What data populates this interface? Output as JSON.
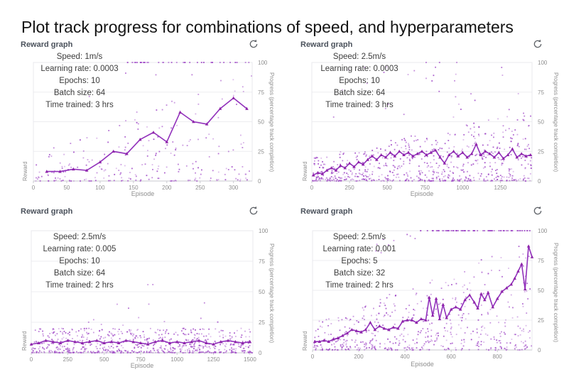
{
  "title": "Plot track progress for combinations of speed, and hyperparameters",
  "colors": {
    "line": "#9130bb",
    "marker": "#8e24aa",
    "scatter": "#9b3fc4",
    "grid": "#ededf0",
    "plot_border": "#e8e8ee",
    "axis_line": "#c9c9cf",
    "tick_text": "#8f8f8f",
    "refresh_icon": "#5f6368"
  },
  "chart_data": [
    {
      "type": "scatter",
      "header": "Reward graph",
      "annotation": [
        "Speed: 1m/s",
        "Learning rate: 0.0003",
        "Epochs: 10",
        "Batch size: 64",
        "Time trained: 3 hrs"
      ],
      "xlabel": "Episode",
      "ylabel_left": "Reward",
      "ylabel_right": "Progress (percentage track completion)",
      "x_ticks": [
        0,
        50,
        100,
        150,
        200,
        250,
        300
      ],
      "y_ticks": [
        0,
        25,
        50,
        75,
        100
      ],
      "xlim": [
        0,
        328
      ],
      "ylim": [
        0,
        100
      ],
      "grid": true,
      "legend": false,
      "line_series": {
        "name": "average progress",
        "x": [
          20,
          40,
          60,
          80,
          100,
          120,
          140,
          160,
          180,
          200,
          220,
          240,
          260,
          280,
          300,
          320
        ],
        "y": [
          8,
          8,
          10,
          9,
          16,
          25,
          23,
          35,
          41,
          33,
          58,
          50,
          48,
          61,
          70,
          61
        ]
      },
      "scatter_spec": {
        "seed": 11,
        "n": 235,
        "ymax_start": 26,
        "ymax_end": 95,
        "power": 2.3,
        "top_row": {
          "from": 140,
          "to": 327,
          "n": 36
        },
        "outliers": {
          "n": 8,
          "from": 60,
          "to": 327,
          "ymin": 70,
          "ymax": 99
        }
      }
    },
    {
      "type": "scatter",
      "header": "Reward graph",
      "annotation": [
        "Speed: 2.5m/s",
        "Learning rate: 0.0003",
        "Epochs: 10",
        "Batch size: 64",
        "Time trained: 3 hrs"
      ],
      "xlabel": "Episode",
      "ylabel_left": "Reward",
      "ylabel_right": "Progress (percentage track completion)",
      "x_ticks": [
        0,
        250,
        500,
        750,
        1000,
        1250
      ],
      "y_ticks": [
        0,
        25,
        50,
        75,
        100
      ],
      "xlim": [
        0,
        1460
      ],
      "ylim": [
        0,
        100
      ],
      "grid": true,
      "legend": false,
      "line_series": {
        "name": "average progress",
        "x": [
          10,
          40,
          70,
          100,
          130,
          160,
          190,
          220,
          250,
          280,
          310,
          340,
          370,
          400,
          430,
          460,
          490,
          520,
          550,
          580,
          610,
          640,
          670,
          700,
          730,
          760,
          790,
          820,
          850,
          880,
          910,
          940,
          970,
          1000,
          1030,
          1060,
          1090,
          1120,
          1150,
          1180,
          1210,
          1240,
          1270,
          1300,
          1330,
          1360,
          1390,
          1420,
          1450
        ],
        "y": [
          5,
          7,
          6,
          9,
          11,
          9,
          13,
          11,
          15,
          12,
          16,
          14,
          18,
          21,
          18,
          22,
          20,
          24,
          21,
          25,
          22,
          24,
          21,
          23,
          25,
          22,
          24,
          26,
          20,
          15,
          22,
          25,
          21,
          24,
          20,
          23,
          31,
          22,
          25,
          23,
          20,
          24,
          19,
          22,
          27,
          20,
          23,
          21,
          22
        ]
      },
      "scatter_spec": {
        "seed": 22,
        "n": 680,
        "ymax_start": 20,
        "ymax_end": 60,
        "power": 2.0,
        "top_row": {
          "from": 600,
          "to": 1100,
          "n": 3
        },
        "outliers": {
          "n": 30,
          "from": 100,
          "to": 1455,
          "ymin": 50,
          "ymax": 100
        }
      }
    },
    {
      "type": "scatter",
      "header": "Reward graph",
      "annotation": [
        "Speed: 2.5m/s",
        "Learning rate: 0.005",
        "Epochs: 10",
        "Batch size: 64",
        "Time trained: 2 hrs"
      ],
      "xlabel": "Episode",
      "ylabel_left": "Reward",
      "ylabel_right": "Progress (percentage track completion)",
      "x_ticks": [
        0,
        250,
        500,
        750,
        1000,
        1250,
        1500
      ],
      "y_ticks": [
        0,
        25,
        50,
        75,
        100
      ],
      "xlim": [
        0,
        1520
      ],
      "ylim": [
        0,
        100
      ],
      "grid": true,
      "legend": false,
      "line_series": {
        "name": "average progress",
        "x": [
          0,
          50,
          100,
          150,
          200,
          250,
          300,
          350,
          400,
          450,
          500,
          550,
          600,
          650,
          700,
          750,
          800,
          850,
          900,
          950,
          1000,
          1050,
          1100,
          1150,
          1200,
          1250,
          1300,
          1350,
          1400,
          1450,
          1500
        ],
        "y": [
          7,
          8,
          10,
          9,
          8,
          10,
          9,
          8,
          9,
          10,
          8,
          9,
          8,
          10,
          9,
          8,
          7,
          9,
          10,
          8,
          9,
          8,
          9,
          10,
          8,
          7,
          9,
          10,
          9,
          8,
          9
        ]
      },
      "scatter_spec": {
        "seed": 33,
        "n": 680,
        "ymax_start": 20,
        "ymax_end": 20,
        "power": 2.2,
        "top_row": {
          "from": 0,
          "to": 0,
          "n": 0
        },
        "outliers": {
          "n": 14,
          "from": 30,
          "to": 1480,
          "ymin": 22,
          "ymax": 56
        }
      }
    },
    {
      "type": "scatter",
      "header": "Reward graph",
      "annotation": [
        "Speed: 2.5m/s",
        "Learning rate: 0.001",
        "Epochs: 5",
        "Batch size: 32",
        "Time trained: 2 hrs"
      ],
      "xlabel": "Episode",
      "ylabel_left": "Reward",
      "ylabel_right": "Progress (percentage track completion)",
      "x_ticks": [
        0,
        200,
        400,
        600,
        800
      ],
      "y_ticks": [
        0,
        25,
        50,
        75,
        100
      ],
      "xlim": [
        0,
        950
      ],
      "ylim": [
        0,
        100
      ],
      "grid": true,
      "legend": false,
      "line_series": {
        "name": "average progress",
        "x": [
          10,
          30,
          50,
          70,
          90,
          110,
          130,
          150,
          170,
          190,
          210,
          230,
          250,
          270,
          290,
          310,
          330,
          350,
          370,
          390,
          410,
          430,
          450,
          470,
          490,
          505,
          520,
          535,
          550,
          565,
          580,
          600,
          620,
          640,
          660,
          680,
          700,
          715,
          730,
          745,
          760,
          780,
          800,
          820,
          840,
          860,
          875,
          890,
          905,
          920,
          935,
          950
        ],
        "y": [
          7,
          7,
          8,
          7,
          9,
          10,
          12,
          14,
          17,
          16,
          15,
          17,
          23,
          17,
          20,
          18,
          17,
          19,
          18,
          24,
          25,
          25,
          23,
          26,
          25,
          44,
          29,
          43,
          26,
          38,
          27,
          34,
          36,
          34,
          42,
          46,
          40,
          35,
          47,
          42,
          48,
          36,
          43,
          49,
          52,
          55,
          60,
          66,
          72,
          51,
          87,
          78
        ]
      },
      "scatter_spec": {
        "seed": 44,
        "n": 520,
        "ymax_start": 22,
        "ymax_end": 92,
        "power": 2.1,
        "top_row": {
          "from": 460,
          "to": 950,
          "n": 70
        },
        "outliers": {
          "n": 10,
          "from": 250,
          "to": 460,
          "ymin": 80,
          "ymax": 100
        }
      }
    }
  ]
}
